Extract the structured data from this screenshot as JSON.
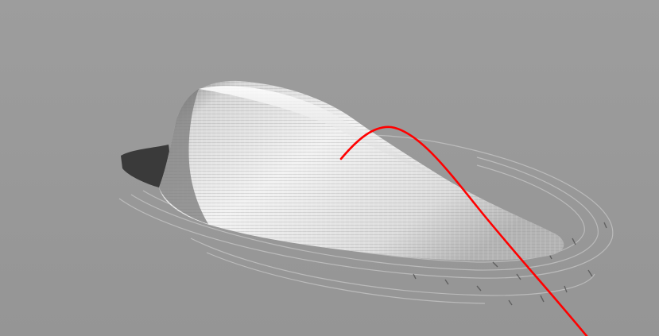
{
  "viewport": {
    "background_color": "#9a9a9a",
    "surface_color": "#e6e6e6",
    "shadow_color": "#3a3a3a",
    "trajectory_color": "#ff0000"
  },
  "scene": {
    "surface_name": "height-field-surface",
    "trajectory_name": "trajectory-curve"
  }
}
